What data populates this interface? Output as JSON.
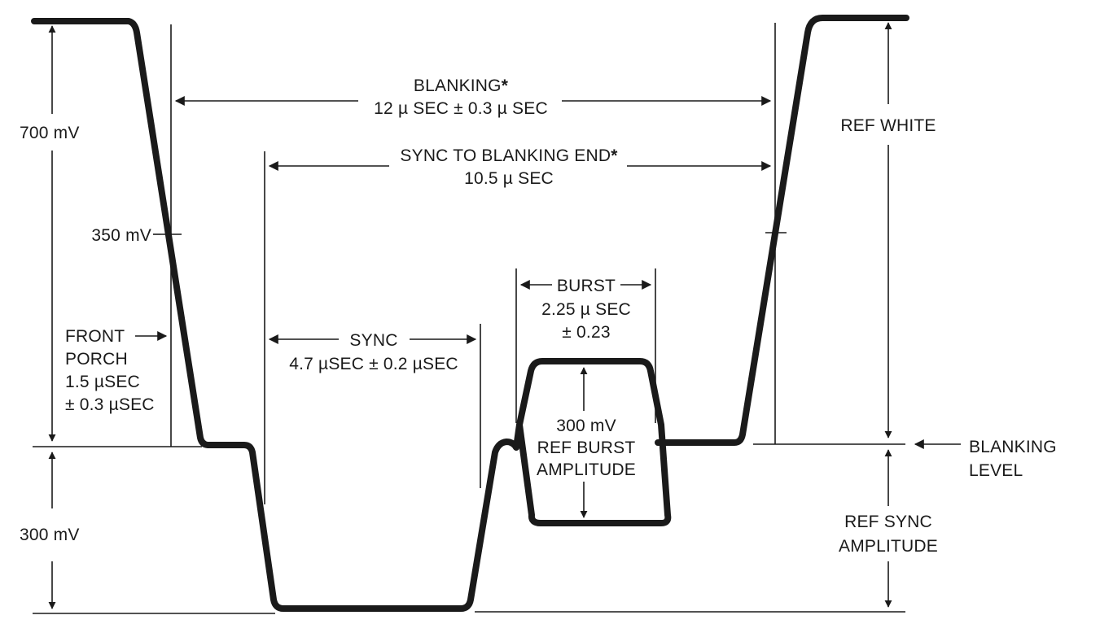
{
  "labels": {
    "v700": "700 mV",
    "v350": "350 mV",
    "v300": "300 mV",
    "blanking_line1": "BLANKING",
    "blanking_star": "*",
    "blanking_line2": "12 µ SEC ± 0.3 µ SEC",
    "sync_end_line1": "SYNC TO BLANKING END",
    "sync_end_star": "*",
    "sync_end_line2": "10.5 µ SEC",
    "front_line1": "FRONT",
    "front_line2": "PORCH",
    "front_line3": "1.5 µSEC",
    "front_line4": "± 0.3 µSEC",
    "sync_line1": "SYNC",
    "sync_line2": "4.7 µSEC ± 0.2 µSEC",
    "burst_line1": "BURST",
    "burst_line2": "2.25 µ SEC",
    "burst_line3": "± 0.23",
    "burst_amp_line1": "300 mV",
    "burst_amp_line2": "REF BURST",
    "burst_amp_line3": "AMPLITUDE",
    "ref_white": "REF WHITE",
    "blank_level_line1": "BLANKING",
    "blank_level_line2": "LEVEL",
    "ref_sync_line1": "REF SYNC",
    "ref_sync_line2": "AMPLITUDE"
  }
}
